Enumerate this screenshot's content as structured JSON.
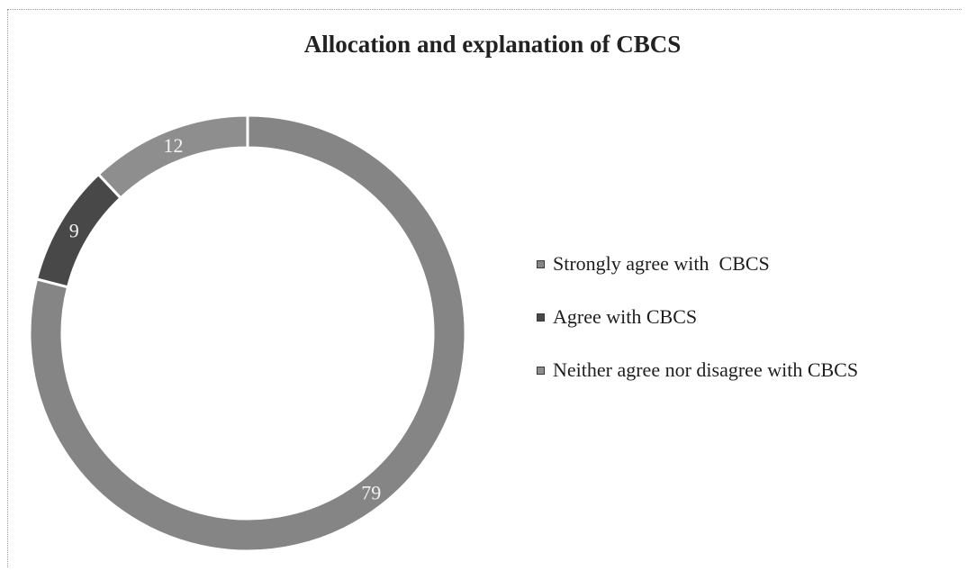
{
  "chart_data": {
    "type": "pie",
    "title": "Allocation and explanation of CBCS",
    "donut": true,
    "start_angle_deg": 0,
    "direction": "clockwise",
    "legend_position": "right",
    "series": [
      {
        "name": "Strongly agree with  CBCS",
        "value": 79,
        "color": "#858585"
      },
      {
        "name": "Agree with CBCS",
        "value": 9,
        "color": "#484848"
      },
      {
        "name": "Neither agree nor disagree with CBCS",
        "value": 12,
        "color": "#8e8e8e"
      }
    ],
    "data_labels": [
      "79",
      "9",
      "12"
    ]
  }
}
